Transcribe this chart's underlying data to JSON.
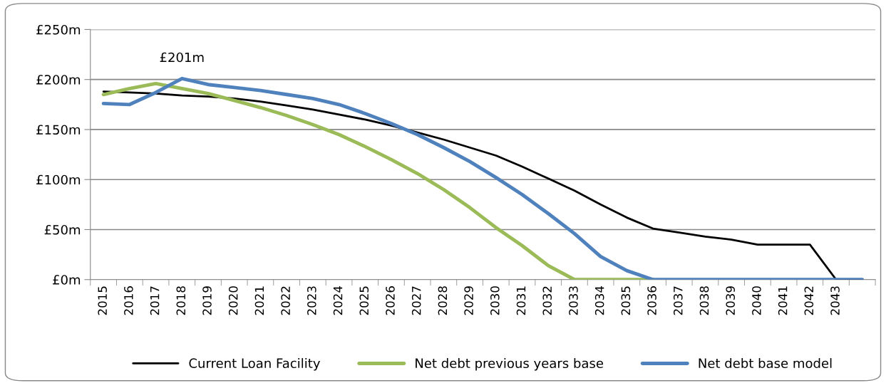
{
  "chart_data": {
    "type": "line",
    "categories": [
      "2015",
      "2016",
      "2017",
      "2018",
      "2019",
      "2020",
      "2021",
      "2022",
      "2023",
      "2024",
      "2025",
      "2026",
      "2027",
      "2028",
      "2029",
      "2030",
      "2031",
      "2032",
      "2033",
      "2034",
      "2035",
      "2036",
      "2037",
      "2038",
      "2039",
      "2040",
      "2041",
      "2042",
      "2043",
      null
    ],
    "series": [
      {
        "name": "Current Loan Facility",
        "color": "#000000",
        "values": [
          188,
          187,
          186,
          184,
          183,
          181,
          178,
          174,
          170,
          165,
          160,
          154,
          147,
          140,
          132,
          124,
          113,
          101,
          89,
          75,
          62,
          51,
          47,
          43,
          40,
          35,
          35,
          35,
          0,
          0
        ]
      },
      {
        "name": "Net debt previous years base",
        "color": "#9bbb59",
        "values": [
          185,
          191,
          196,
          191,
          186,
          179,
          172,
          164,
          155,
          145,
          133,
          120,
          106,
          90,
          72,
          52,
          34,
          14,
          0,
          0,
          0,
          0,
          null,
          null,
          null,
          null,
          null,
          null,
          null,
          null
        ]
      },
      {
        "name": "Net debt base model",
        "color": "#4f81bd",
        "values": [
          176,
          175,
          187,
          201,
          195,
          192,
          189,
          185,
          181,
          175,
          166,
          156,
          145,
          132,
          118,
          102,
          85,
          66,
          46,
          23,
          9,
          0,
          0,
          0,
          0,
          0,
          0,
          0,
          0,
          0
        ]
      }
    ],
    "annotations": [
      {
        "text": "£201m",
        "x": "2018",
        "y": 201
      }
    ],
    "ylim": [
      0,
      250
    ],
    "yticks": [
      {
        "value": 0,
        "label": "£0m"
      },
      {
        "value": 50,
        "label": "£50m"
      },
      {
        "value": 100,
        "label": "£100m"
      },
      {
        "value": 150,
        "label": "£150m"
      },
      {
        "value": 200,
        "label": "£200m"
      },
      {
        "value": 250,
        "label": "£250m"
      }
    ],
    "grid": "y",
    "legend": "bottom",
    "marker": "none",
    "line_style": "solid"
  }
}
